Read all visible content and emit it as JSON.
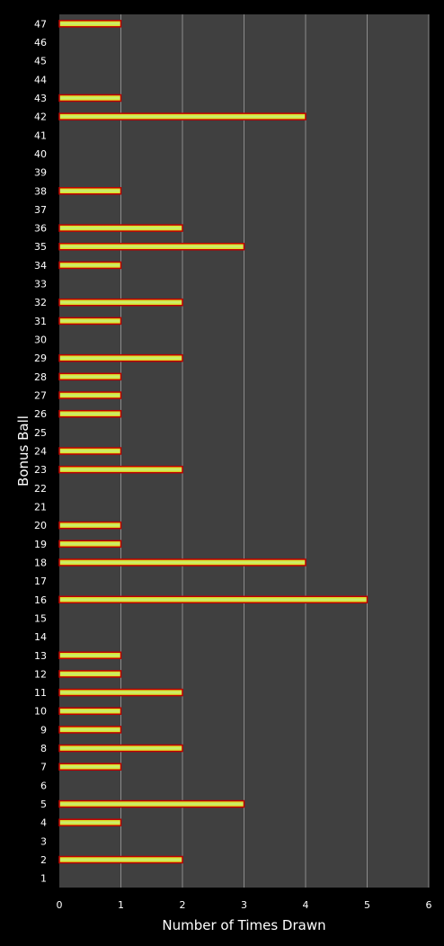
{
  "chart_data": {
    "type": "bar",
    "orientation": "horizontal",
    "title": "",
    "xlabel": "Number of Times Drawn",
    "ylabel": "Bonus Ball",
    "xlim": [
      0,
      6
    ],
    "x_ticks": [
      0,
      1,
      2,
      3,
      4,
      5,
      6
    ],
    "grid": "vertical",
    "legend": "none",
    "categories": [
      "1",
      "2",
      "3",
      "4",
      "5",
      "6",
      "7",
      "8",
      "9",
      "10",
      "11",
      "12",
      "13",
      "14",
      "15",
      "16",
      "17",
      "18",
      "19",
      "20",
      "21",
      "22",
      "23",
      "24",
      "25",
      "26",
      "27",
      "28",
      "29",
      "30",
      "31",
      "32",
      "33",
      "34",
      "35",
      "36",
      "37",
      "38",
      "39",
      "40",
      "41",
      "42",
      "43",
      "44",
      "45",
      "46",
      "47"
    ],
    "values": [
      0,
      2,
      0,
      1,
      3,
      0,
      1,
      2,
      1,
      1,
      2,
      1,
      1,
      0,
      0,
      5,
      0,
      4,
      1,
      1,
      0,
      0,
      2,
      1,
      0,
      1,
      1,
      1,
      2,
      0,
      1,
      2,
      0,
      1,
      3,
      2,
      0,
      1,
      0,
      0,
      0,
      4,
      1,
      0,
      0,
      0,
      1
    ],
    "colors": {
      "page_background": "#000000",
      "plot_background": "#404040",
      "gridline": "#8c8c8c",
      "bar_outline": "#c00000",
      "bar_fill_edge": "#e8d800",
      "bar_fill_center": "#c8f078",
      "text": "#ffffff"
    }
  }
}
